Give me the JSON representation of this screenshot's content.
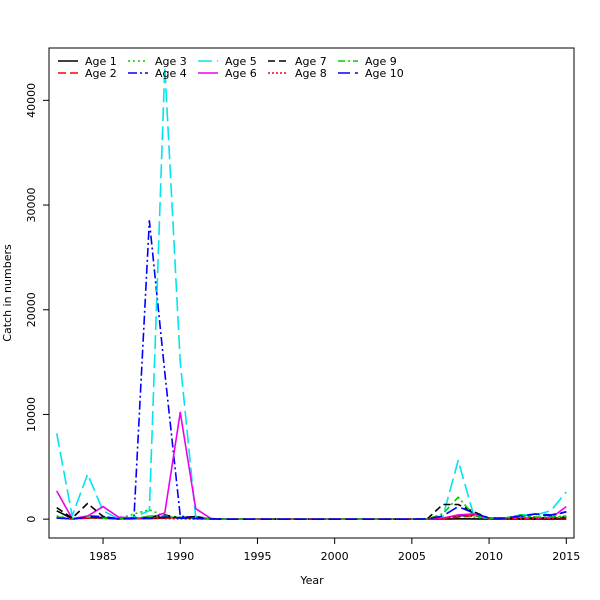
{
  "chart_data": {
    "type": "line",
    "title": "",
    "xlabel": "Year",
    "ylabel": "Catch in numbers",
    "xlim": [
      1981.5,
      2015.5
    ],
    "ylim": [
      -1800,
      45000
    ],
    "x_ticks": [
      1985,
      1990,
      1995,
      2000,
      2005,
      2010,
      2015
    ],
    "y_ticks": [
      0,
      10000,
      20000,
      30000,
      40000
    ],
    "legend_position": "top-left",
    "grid": false,
    "x": [
      1982,
      1983,
      1984,
      1985,
      1986,
      1987,
      1988,
      1989,
      1990,
      1991,
      1992,
      1993,
      1994,
      1995,
      1996,
      1997,
      1998,
      1999,
      2000,
      2001,
      2002,
      2003,
      2004,
      2005,
      2006,
      2007,
      2008,
      2009,
      2010,
      2011,
      2012,
      2013,
      2014,
      2015
    ],
    "series": [
      {
        "name": "Age 1",
        "color": "#000000",
        "dash": "",
        "values": [
          800,
          50,
          100,
          150,
          80,
          50,
          60,
          100,
          150,
          250,
          20,
          0,
          0,
          0,
          0,
          0,
          0,
          0,
          0,
          0,
          0,
          0,
          0,
          0,
          0,
          10,
          30,
          20,
          10,
          10,
          10,
          10,
          10,
          20
        ]
      },
      {
        "name": "Age 2",
        "color": "#ff0000",
        "dash": "8,4",
        "values": [
          200,
          0,
          100,
          80,
          30,
          30,
          200,
          150,
          120,
          100,
          20,
          0,
          0,
          0,
          0,
          0,
          0,
          0,
          0,
          0,
          0,
          0,
          0,
          0,
          10,
          20,
          200,
          300,
          100,
          50,
          50,
          50,
          100,
          150
        ]
      },
      {
        "name": "Age 3",
        "color": "#00cd00",
        "dash": "2,3",
        "values": [
          300,
          50,
          200,
          50,
          20,
          500,
          900,
          300,
          200,
          100,
          20,
          0,
          0,
          0,
          0,
          0,
          0,
          0,
          0,
          0,
          0,
          0,
          0,
          0,
          20,
          50,
          300,
          200,
          50,
          50,
          300,
          200,
          100,
          300
        ]
      },
      {
        "name": "Age 4",
        "color": "#0000ff",
        "dash": "9,3,2,3",
        "values": [
          200,
          0,
          300,
          250,
          20,
          50,
          28500,
          14000,
          300,
          100,
          20,
          0,
          0,
          0,
          0,
          0,
          0,
          0,
          0,
          0,
          0,
          0,
          0,
          0,
          20,
          100,
          300,
          400,
          50,
          100,
          200,
          500,
          300,
          700
        ]
      },
      {
        "name": "Age 5",
        "color": "#00e5ee",
        "dash": "14,5",
        "values": [
          8200,
          300,
          4300,
          800,
          20,
          200,
          800,
          43200,
          15000,
          200,
          20,
          0,
          0,
          0,
          0,
          0,
          0,
          0,
          0,
          0,
          0,
          0,
          0,
          0,
          50,
          200,
          5600,
          400,
          50,
          100,
          400,
          400,
          800,
          2600
        ]
      },
      {
        "name": "Age 6",
        "color": "#ee00ee",
        "dash": "",
        "values": [
          2700,
          50,
          300,
          1200,
          200,
          100,
          100,
          600,
          10200,
          1000,
          50,
          0,
          0,
          0,
          0,
          0,
          0,
          0,
          0,
          0,
          0,
          0,
          0,
          0,
          20,
          100,
          400,
          500,
          100,
          50,
          100,
          100,
          100,
          1200
        ]
      },
      {
        "name": "Age 7",
        "color": "#000000",
        "dash": "7,4",
        "values": [
          1100,
          100,
          1500,
          250,
          20,
          100,
          200,
          400,
          100,
          100,
          50,
          0,
          0,
          0,
          0,
          0,
          0,
          0,
          0,
          0,
          0,
          0,
          0,
          0,
          30,
          1400,
          1400,
          700,
          100,
          50,
          50,
          100,
          100,
          200
        ]
      },
      {
        "name": "Age 8",
        "color": "#ff0000",
        "dash": "2,2",
        "values": [
          100,
          20,
          100,
          80,
          20,
          50,
          100,
          50,
          30,
          20,
          10,
          0,
          0,
          0,
          0,
          0,
          0,
          0,
          0,
          0,
          0,
          0,
          0,
          0,
          10,
          50,
          300,
          400,
          100,
          50,
          50,
          100,
          100,
          150
        ]
      },
      {
        "name": "Age 9",
        "color": "#00cd00",
        "dash": "7,3,2,3",
        "values": [
          200,
          20,
          200,
          100,
          20,
          50,
          300,
          300,
          100,
          50,
          20,
          0,
          0,
          0,
          0,
          0,
          0,
          0,
          0,
          0,
          0,
          0,
          0,
          0,
          20,
          500,
          2100,
          400,
          100,
          100,
          400,
          200,
          200,
          300
        ]
      },
      {
        "name": "Age 10",
        "color": "#0000ff",
        "dash": "12,5",
        "values": [
          100,
          20,
          200,
          150,
          20,
          50,
          100,
          200,
          100,
          50,
          20,
          0,
          0,
          0,
          0,
          0,
          0,
          0,
          0,
          0,
          0,
          0,
          0,
          0,
          20,
          300,
          1200,
          600,
          100,
          100,
          300,
          500,
          400,
          700
        ]
      }
    ]
  }
}
